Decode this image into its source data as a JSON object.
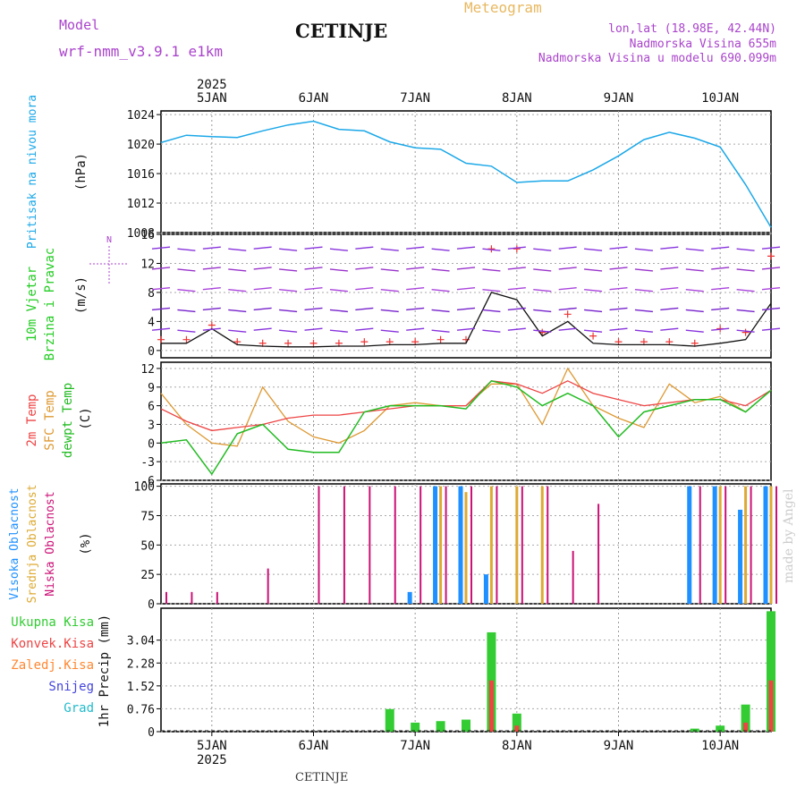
{
  "header": {
    "model_label": "Model",
    "model_name": "wrf-nmm_v3.9.1 e1km",
    "station": "CETINJE",
    "product": "Meteogram",
    "lonlat": "lon,lat (18.98E, 42.44N)",
    "altitude": "Nadmorska Visina 655m",
    "model_altitude": "Nadmorska Visina u modelu 690.099m",
    "footer_station": "CETINJE",
    "credit": "made by Angel"
  },
  "colors": {
    "pressure": "#1ba8e8",
    "wind_label": "#22cc22",
    "temp2m": "#ee4444",
    "sfc": "#dd9933",
    "dewpt": "#22bb22",
    "high_cloud": "#1e90ff",
    "mid_cloud": "#ddaa33",
    "low_cloud": "#cc1177",
    "total_precip": "#33cc33",
    "conv_precip": "#ee4444",
    "frz": "#ff8833",
    "snow": "#4444dd",
    "hail": "#22bbcc",
    "header_purple": "#aa44cc",
    "meteogram": "#e8b860"
  },
  "time_axis": {
    "year": "2025",
    "days": [
      "5JAN",
      "6JAN",
      "7JAN",
      "8JAN",
      "9JAN",
      "10JAN"
    ]
  },
  "chart_data": [
    {
      "type": "line",
      "panel": "pressure",
      "ylabel": "Pritisak na nivou mora",
      "unit": "(hPa)",
      "x": [
        "4JAN 12h",
        "4JAN 18h",
        "5JAN 00h",
        "5JAN 06h",
        "5JAN 12h",
        "5JAN 18h",
        "6JAN 00h",
        "6JAN 06h",
        "6JAN 12h",
        "6JAN 18h",
        "7JAN 00h",
        "7JAN 06h",
        "7JAN 12h",
        "7JAN 18h",
        "8JAN 00h",
        "8JAN 06h",
        "8JAN 12h",
        "8JAN 18h",
        "9JAN 00h",
        "9JAN 06h",
        "9JAN 12h",
        "9JAN 18h",
        "10JAN 00h",
        "10JAN 06h",
        "10JAN 12h"
      ],
      "series": [
        {
          "values": [
            1020.2,
            1021.2,
            1021.0,
            1020.9,
            1021.8,
            1022.6,
            1023.1,
            1022.0,
            1021.8,
            1020.3,
            1019.5,
            1019.3,
            1017.4,
            1017.0,
            1014.8,
            1015.0,
            1015.0,
            1016.5,
            1018.4,
            1020.6,
            1021.6,
            1020.8,
            1019.6,
            1014.5,
            1008.7
          ]
        }
      ],
      "yticks": [
        1008,
        1012,
        1016,
        1020,
        1024
      ],
      "ylim": [
        1008,
        1024.5
      ]
    },
    {
      "type": "line",
      "panel": "wind",
      "ylabel": "10m Vjetar Brzina i Pravac",
      "unit": "(m/s)",
      "compass": "N",
      "x": [
        "4JAN 12h",
        "4JAN 18h",
        "5JAN 00h",
        "5JAN 06h",
        "5JAN 12h",
        "5JAN 18h",
        "6JAN 00h",
        "6JAN 06h",
        "6JAN 12h",
        "6JAN 18h",
        "7JAN 00h",
        "7JAN 06h",
        "7JAN 12h",
        "7JAN 18h",
        "8JAN 00h",
        "8JAN 06h",
        "8JAN 12h",
        "8JAN 18h",
        "9JAN 00h",
        "9JAN 06h",
        "9JAN 12h",
        "9JAN 18h",
        "10JAN 00h",
        "10JAN 06h",
        "10JAN 12h"
      ],
      "series": [
        {
          "name": "speed",
          "values": [
            1.0,
            1.0,
            3.0,
            0.8,
            0.6,
            0.5,
            0.5,
            0.6,
            0.6,
            0.8,
            0.8,
            1.0,
            1.0,
            8.0,
            7.0,
            2.0,
            4.0,
            1.0,
            0.8,
            0.8,
            0.8,
            0.6,
            1.0,
            1.5,
            6.5
          ]
        },
        {
          "name": "gust",
          "values": [
            1.5,
            1.5,
            3.5,
            1.2,
            1.0,
            1.0,
            1.0,
            1.0,
            1.2,
            1.2,
            1.2,
            1.5,
            1.5,
            14.0,
            14.0,
            2.5,
            5.0,
            2.0,
            1.2,
            1.2,
            1.2,
            1.0,
            3.0,
            2.5,
            13.0
          ]
        }
      ],
      "yticks": [
        0,
        4,
        8,
        12,
        16
      ],
      "ylim": [
        -1,
        16
      ]
    },
    {
      "type": "line",
      "panel": "temperature",
      "ylabel": "2m Temp SFC Temp dewpt Temp",
      "unit": "(C)",
      "x": [
        "4JAN 12h",
        "4JAN 18h",
        "5JAN 00h",
        "5JAN 06h",
        "5JAN 12h",
        "5JAN 18h",
        "6JAN 00h",
        "6JAN 06h",
        "6JAN 12h",
        "6JAN 18h",
        "7JAN 00h",
        "7JAN 06h",
        "7JAN 12h",
        "7JAN 18h",
        "8JAN 00h",
        "8JAN 06h",
        "8JAN 12h",
        "8JAN 18h",
        "9JAN 00h",
        "9JAN 06h",
        "9JAN 12h",
        "9JAN 18h",
        "10JAN 00h",
        "10JAN 06h",
        "10JAN 12h"
      ],
      "series": [
        {
          "name": "2m Temp",
          "values": [
            5.5,
            3.5,
            2.0,
            2.5,
            3.0,
            4.0,
            4.5,
            4.5,
            5.0,
            5.5,
            6.0,
            6.0,
            6.0,
            10.0,
            9.5,
            8.0,
            10.0,
            8.0,
            7.0,
            6.0,
            6.5,
            7.0,
            7.0,
            6.0,
            8.5
          ]
        },
        {
          "name": "SFC Temp",
          "values": [
            8.0,
            3.0,
            0.0,
            -0.5,
            9.0,
            3.5,
            1.0,
            0.0,
            2.0,
            6.0,
            6.5,
            6.0,
            6.0,
            9.5,
            9.5,
            3.0,
            12.0,
            6.0,
            4.0,
            2.5,
            9.5,
            6.5,
            7.5,
            5.0,
            8.5
          ]
        },
        {
          "name": "dewpt Temp",
          "values": [
            0.0,
            0.5,
            -5.0,
            1.5,
            3.0,
            -1.0,
            -1.5,
            -1.5,
            5.0,
            6.0,
            6.0,
            6.0,
            5.5,
            10.0,
            9.0,
            6.0,
            8.0,
            6.0,
            1.0,
            5.0,
            6.0,
            7.0,
            7.0,
            5.0,
            8.5
          ]
        }
      ],
      "yticks": [
        -6,
        -3,
        0,
        3,
        6,
        9,
        12
      ],
      "ylim": [
        -6,
        13
      ]
    },
    {
      "type": "bar",
      "panel": "cloud",
      "ylabel": "Visoka Oblacnost Srednja Oblacnost Niska Oblacnost",
      "unit": "(%)",
      "x": [
        "4JAN 12h",
        "4JAN 18h",
        "5JAN 00h",
        "5JAN 06h",
        "5JAN 12h",
        "5JAN 18h",
        "6JAN 00h",
        "6JAN 06h",
        "6JAN 12h",
        "6JAN 18h",
        "7JAN 00h",
        "7JAN 06h",
        "7JAN 12h",
        "7JAN 18h",
        "8JAN 00h",
        "8JAN 06h",
        "8JAN 12h",
        "8JAN 18h",
        "9JAN 00h",
        "9JAN 06h",
        "9JAN 12h",
        "9JAN 18h",
        "10JAN 00h",
        "10JAN 06h",
        "10JAN 12h"
      ],
      "series": [
        {
          "name": "Visoka Oblacnost",
          "values": [
            0,
            0,
            0,
            0,
            0,
            0,
            0,
            0,
            0,
            0,
            10,
            100,
            100,
            25,
            0,
            0,
            0,
            0,
            0,
            0,
            0,
            100,
            100,
            80,
            100
          ]
        },
        {
          "name": "Srednja Oblacnost",
          "values": [
            0,
            0,
            0,
            0,
            0,
            0,
            0,
            0,
            0,
            0,
            0,
            100,
            95,
            100,
            100,
            100,
            0,
            0,
            0,
            0,
            0,
            0,
            100,
            100,
            100
          ]
        },
        {
          "name": "Niska Oblacnost",
          "values": [
            10,
            10,
            10,
            0,
            30,
            0,
            100,
            100,
            100,
            100,
            100,
            100,
            100,
            100,
            100,
            100,
            45,
            85,
            0,
            0,
            0,
            100,
            100,
            100,
            100
          ]
        }
      ],
      "yticks": [
        0,
        25,
        50,
        75,
        100
      ],
      "ylim": [
        0,
        102
      ]
    },
    {
      "type": "bar",
      "panel": "precip",
      "ylabel": "1hr Precip",
      "unit": "(mm)",
      "legend": [
        "Ukupna Kisa",
        "Konvek.Kisa",
        "Zaledj.Kisa",
        "Snijeg",
        "Grad"
      ],
      "x": [
        "4JAN 12h",
        "4JAN 18h",
        "5JAN 00h",
        "5JAN 06h",
        "5JAN 12h",
        "5JAN 18h",
        "6JAN 00h",
        "6JAN 06h",
        "6JAN 12h",
        "6JAN 18h",
        "7JAN 00h",
        "7JAN 06h",
        "7JAN 12h",
        "7JAN 18h",
        "8JAN 00h",
        "8JAN 06h",
        "8JAN 12h",
        "8JAN 18h",
        "9JAN 00h",
        "9JAN 06h",
        "9JAN 12h",
        "9JAN 18h",
        "10JAN 00h",
        "10JAN 06h",
        "10JAN 12h"
      ],
      "series": [
        {
          "name": "Ukupna Kisa",
          "values": [
            0,
            0,
            0,
            0,
            0,
            0,
            0,
            0,
            0,
            0.75,
            0.3,
            0.35,
            0.4,
            3.3,
            0.6,
            0,
            0,
            0,
            0,
            0,
            0,
            0.1,
            0.2,
            0.9,
            4.0
          ]
        },
        {
          "name": "Konvek.Kisa",
          "values": [
            0,
            0,
            0,
            0,
            0,
            0,
            0,
            0,
            0,
            0,
            0,
            0,
            0,
            1.7,
            0.2,
            0,
            0,
            0,
            0,
            0,
            0,
            0,
            0,
            0.3,
            1.7
          ]
        }
      ],
      "yticks": [
        0,
        0.76,
        1.52,
        2.28,
        3.04
      ],
      "ytick_labels": [
        "0",
        "0.76",
        "1.52",
        "2.28",
        "3.04"
      ],
      "ylim": [
        0,
        4.1
      ]
    }
  ]
}
